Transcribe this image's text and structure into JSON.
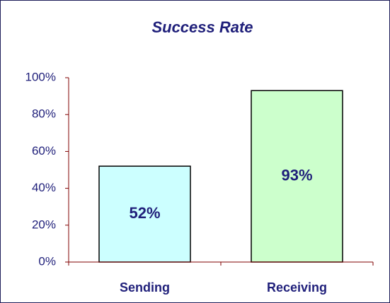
{
  "chart_data": {
    "type": "bar",
    "title": "Success Rate",
    "categories": [
      "Sending",
      "Receiving"
    ],
    "values": [
      52,
      93
    ],
    "value_labels": [
      "52%",
      "93%"
    ],
    "colors": [
      "#ccffff",
      "#ccffcc"
    ],
    "ylim": [
      0,
      100
    ],
    "yticks": [
      {
        "value": 0,
        "label": "0%"
      },
      {
        "value": 20,
        "label": "20%"
      },
      {
        "value": 40,
        "label": "40%"
      },
      {
        "value": 60,
        "label": "60%"
      },
      {
        "value": 80,
        "label": "80%"
      },
      {
        "value": 100,
        "label": "100%"
      }
    ],
    "grid": false
  }
}
